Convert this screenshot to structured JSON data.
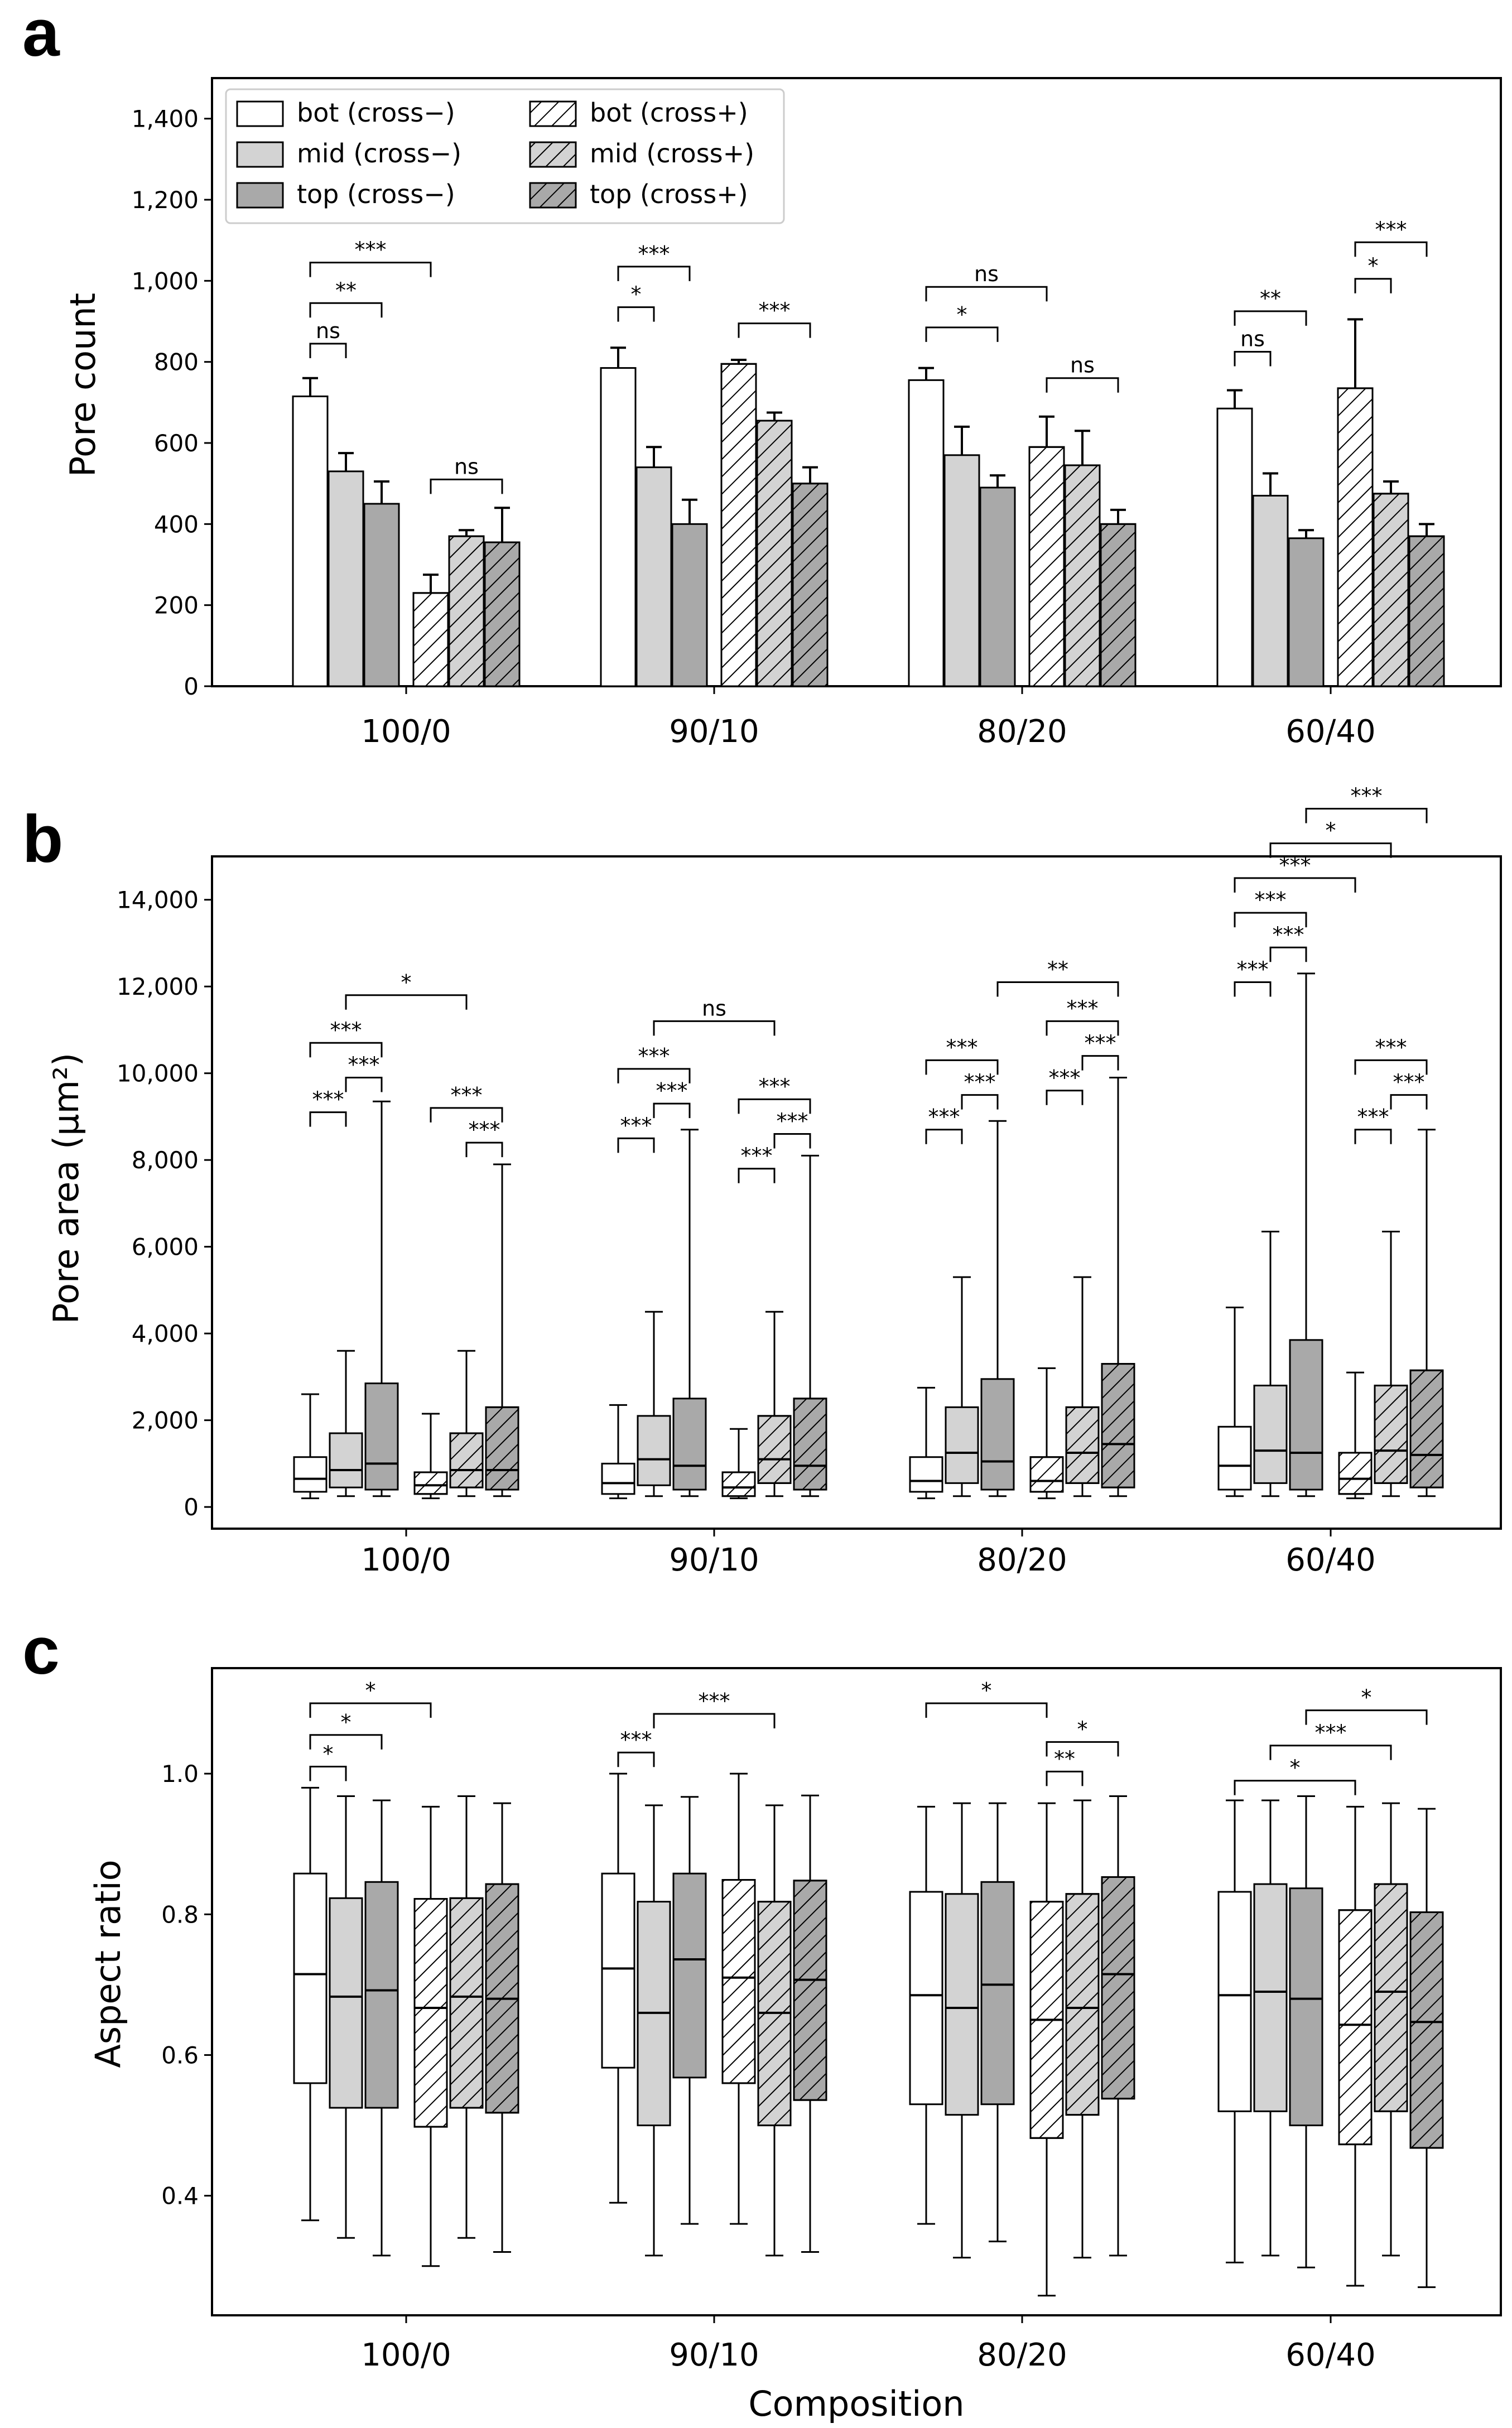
{
  "categories": [
    "100/0",
    "90/10",
    "80/20",
    "60/40"
  ],
  "legend": [
    {
      "label": "bot (cross−)",
      "fill": "#ffffff",
      "hatch": false
    },
    {
      "label": "mid (cross−)",
      "fill": "#d3d3d3",
      "hatch": false
    },
    {
      "label": "top (cross−)",
      "fill": "#a9a9a9",
      "hatch": false
    },
    {
      "label": "bot (cross+)",
      "fill": "#ffffff",
      "hatch": true
    },
    {
      "label": "mid (cross+)",
      "fill": "#d3d3d3",
      "hatch": true
    },
    {
      "label": "top (cross+)",
      "fill": "#a9a9a9",
      "hatch": true
    }
  ],
  "xlabel": "Composition",
  "chart_data": [
    {
      "panel": "a",
      "type": "bar",
      "ylabel": "Pore count",
      "ylim": [
        0,
        1500
      ],
      "yticks": [
        0,
        200,
        400,
        600,
        800,
        1000,
        1200,
        1400
      ],
      "ytick_labels": [
        "0",
        "200",
        "400",
        "600",
        "800",
        "1,000",
        "1,200",
        "1,400"
      ],
      "categories": [
        "100/0",
        "90/10",
        "80/20",
        "60/40"
      ],
      "series": [
        {
          "name": "bot (cross−)",
          "values": [
            715,
            785,
            755,
            685
          ],
          "errors": [
            45,
            50,
            30,
            45
          ]
        },
        {
          "name": "mid (cross−)",
          "values": [
            530,
            540,
            570,
            470
          ],
          "errors": [
            45,
            50,
            70,
            55
          ]
        },
        {
          "name": "top (cross−)",
          "values": [
            450,
            400,
            490,
            365
          ],
          "errors": [
            55,
            60,
            30,
            20
          ]
        },
        {
          "name": "bot (cross+)",
          "values": [
            230,
            795,
            590,
            735
          ],
          "errors": [
            45,
            10,
            75,
            170
          ]
        },
        {
          "name": "mid (cross+)",
          "values": [
            370,
            655,
            545,
            475
          ],
          "errors": [
            15,
            20,
            85,
            30
          ]
        },
        {
          "name": "top (cross+)",
          "values": [
            355,
            500,
            400,
            370
          ],
          "errors": [
            85,
            40,
            35,
            30
          ]
        }
      ],
      "significance": [
        {
          "group": 0,
          "from": 0,
          "to": 1,
          "label": "ns",
          "y": 845
        },
        {
          "group": 0,
          "from": 0,
          "to": 2,
          "label": "**",
          "y": 945
        },
        {
          "group": 0,
          "from": 0,
          "to": 3,
          "label": "***",
          "y": 1045
        },
        {
          "group": 0,
          "from": 3,
          "to": 5,
          "label": "ns",
          "y": 510
        },
        {
          "group": 1,
          "from": 0,
          "to": 1,
          "label": "*",
          "y": 935
        },
        {
          "group": 1,
          "from": 0,
          "to": 2,
          "label": "***",
          "y": 1035
        },
        {
          "group": 1,
          "from": 3,
          "to": 5,
          "label": "***",
          "y": 895
        },
        {
          "group": 2,
          "from": 0,
          "to": 2,
          "label": "*",
          "y": 885
        },
        {
          "group": 2,
          "from": 0,
          "to": 3,
          "label": "ns",
          "y": 985
        },
        {
          "group": 2,
          "from": 3,
          "to": 5,
          "label": "ns",
          "y": 760
        },
        {
          "group": 3,
          "from": 0,
          "to": 1,
          "label": "ns",
          "y": 825
        },
        {
          "group": 3,
          "from": 0,
          "to": 2,
          "label": "**",
          "y": 925
        },
        {
          "group": 3,
          "from": 3,
          "to": 4,
          "label": "*",
          "y": 1005
        },
        {
          "group": 3,
          "from": 3,
          "to": 5,
          "label": "***",
          "y": 1095
        }
      ]
    },
    {
      "panel": "b",
      "type": "box",
      "ylabel": "Pore area (μm²)",
      "ylim": [
        -500,
        15000
      ],
      "yticks": [
        0,
        2000,
        4000,
        6000,
        8000,
        10000,
        12000,
        14000
      ],
      "ytick_labels": [
        "0",
        "2,000",
        "4,000",
        "6,000",
        "8,000",
        "10,000",
        "12,000",
        "14,000"
      ],
      "categories": [
        "100/0",
        "90/10",
        "80/20",
        "60/40"
      ],
      "groups": [
        [
          {
            "min": 200,
            "q1": 350,
            "median": 650,
            "q3": 1150,
            "max": 2600
          },
          {
            "min": 250,
            "q1": 450,
            "median": 850,
            "q3": 1700,
            "max": 3600
          },
          {
            "min": 250,
            "q1": 400,
            "median": 1000,
            "q3": 2850,
            "max": 9350
          },
          {
            "min": 200,
            "q1": 300,
            "median": 500,
            "q3": 800,
            "max": 2150
          },
          {
            "min": 250,
            "q1": 450,
            "median": 850,
            "q3": 1700,
            "max": 3600
          },
          {
            "min": 250,
            "q1": 400,
            "median": 850,
            "q3": 2300,
            "max": 7900
          }
        ],
        [
          {
            "min": 200,
            "q1": 300,
            "median": 550,
            "q3": 1000,
            "max": 2350
          },
          {
            "min": 250,
            "q1": 500,
            "median": 1100,
            "q3": 2100,
            "max": 4500
          },
          {
            "min": 250,
            "q1": 400,
            "median": 950,
            "q3": 2500,
            "max": 8700
          },
          {
            "min": 200,
            "q1": 250,
            "median": 450,
            "q3": 800,
            "max": 1800
          },
          {
            "min": 250,
            "q1": 550,
            "median": 1100,
            "q3": 2100,
            "max": 4500
          },
          {
            "min": 250,
            "q1": 400,
            "median": 950,
            "q3": 2500,
            "max": 8100
          }
        ],
        [
          {
            "min": 200,
            "q1": 350,
            "median": 600,
            "q3": 1150,
            "max": 2750
          },
          {
            "min": 250,
            "q1": 550,
            "median": 1250,
            "q3": 2300,
            "max": 5300
          },
          {
            "min": 250,
            "q1": 400,
            "median": 1050,
            "q3": 2950,
            "max": 8900
          },
          {
            "min": 200,
            "q1": 350,
            "median": 600,
            "q3": 1150,
            "max": 3200
          },
          {
            "min": 250,
            "q1": 550,
            "median": 1250,
            "q3": 2300,
            "max": 5300
          },
          {
            "min": 250,
            "q1": 450,
            "median": 1450,
            "q3": 3300,
            "max": 9900
          }
        ],
        [
          {
            "min": 250,
            "q1": 400,
            "median": 950,
            "q3": 1850,
            "max": 4600
          },
          {
            "min": 250,
            "q1": 550,
            "median": 1300,
            "q3": 2800,
            "max": 6350
          },
          {
            "min": 250,
            "q1": 400,
            "median": 1250,
            "q3": 3850,
            "max": 12300
          },
          {
            "min": 200,
            "q1": 300,
            "median": 650,
            "q3": 1250,
            "max": 3100
          },
          {
            "min": 250,
            "q1": 550,
            "median": 1300,
            "q3": 2800,
            "max": 6350
          },
          {
            "min": 250,
            "q1": 450,
            "median": 1200,
            "q3": 3150,
            "max": 8700
          }
        ]
      ],
      "significance": [
        {
          "group": 0,
          "from": 0,
          "to": 1,
          "label": "***",
          "y": 9100
        },
        {
          "group": 0,
          "from": 1,
          "to": 2,
          "label": "***",
          "y": 9900
        },
        {
          "group": 0,
          "from": 0,
          "to": 2,
          "label": "***",
          "y": 10700
        },
        {
          "group": 0,
          "from": 4,
          "to": 5,
          "label": "***",
          "y": 8400
        },
        {
          "group": 0,
          "from": 3,
          "to": 5,
          "label": "***",
          "y": 9200
        },
        {
          "group": 0,
          "from": 1,
          "to": 4,
          "label": "*",
          "y": 11800
        },
        {
          "group": 1,
          "from": 0,
          "to": 1,
          "label": "***",
          "y": 8500
        },
        {
          "group": 1,
          "from": 1,
          "to": 2,
          "label": "***",
          "y": 9300
        },
        {
          "group": 1,
          "from": 0,
          "to": 2,
          "label": "***",
          "y": 10100
        },
        {
          "group": 1,
          "from": 3,
          "to": 4,
          "label": "***",
          "y": 7800
        },
        {
          "group": 1,
          "from": 4,
          "to": 5,
          "label": "***",
          "y": 8600
        },
        {
          "group": 1,
          "from": 3,
          "to": 5,
          "label": "***",
          "y": 9400
        },
        {
          "group": 1,
          "from": 1,
          "to": 4,
          "label": "ns",
          "y": 11200
        },
        {
          "group": 2,
          "from": 0,
          "to": 1,
          "label": "***",
          "y": 8700
        },
        {
          "group": 2,
          "from": 1,
          "to": 2,
          "label": "***",
          "y": 9500
        },
        {
          "group": 2,
          "from": 0,
          "to": 2,
          "label": "***",
          "y": 10300
        },
        {
          "group": 2,
          "from": 3,
          "to": 4,
          "label": "***",
          "y": 9600
        },
        {
          "group": 2,
          "from": 4,
          "to": 5,
          "label": "***",
          "y": 10400
        },
        {
          "group": 2,
          "from": 3,
          "to": 5,
          "label": "***",
          "y": 11200
        },
        {
          "group": 2,
          "from": 2,
          "to": 5,
          "label": "**",
          "y": 12100
        },
        {
          "group": 3,
          "from": 0,
          "to": 1,
          "label": "***",
          "y": 12100
        },
        {
          "group": 3,
          "from": 1,
          "to": 2,
          "label": "***",
          "y": 12900
        },
        {
          "group": 3,
          "from": 0,
          "to": 2,
          "label": "***",
          "y": 13700
        },
        {
          "group": 3,
          "from": 0,
          "to": 3,
          "label": "***",
          "y": 14500
        },
        {
          "group": 3,
          "from": 1,
          "to": 4,
          "label": "*",
          "y": 15300
        },
        {
          "group": 3,
          "from": 2,
          "to": 5,
          "label": "***",
          "y": 16100
        },
        {
          "group": 3,
          "from": 3,
          "to": 4,
          "label": "***",
          "y": 8700
        },
        {
          "group": 3,
          "from": 4,
          "to": 5,
          "label": "***",
          "y": 9500
        },
        {
          "group": 3,
          "from": 3,
          "to": 5,
          "label": "***",
          "y": 10300
        }
      ]
    },
    {
      "panel": "c",
      "type": "box",
      "ylabel": "Aspect ratio",
      "ylim": [
        0.23,
        1.15
      ],
      "yticks": [
        0.4,
        0.6,
        0.8,
        1.0
      ],
      "ytick_labels": [
        "0.4",
        "0.6",
        "0.8",
        "1.0"
      ],
      "categories": [
        "100/0",
        "90/10",
        "80/20",
        "60/40"
      ],
      "groups": [
        [
          {
            "min": 0.365,
            "q1": 0.56,
            "median": 0.715,
            "q3": 0.858,
            "max": 0.98
          },
          {
            "min": 0.34,
            "q1": 0.525,
            "median": 0.683,
            "q3": 0.823,
            "max": 0.968
          },
          {
            "min": 0.315,
            "q1": 0.525,
            "median": 0.692,
            "q3": 0.846,
            "max": 0.962
          },
          {
            "min": 0.3,
            "q1": 0.498,
            "median": 0.667,
            "q3": 0.822,
            "max": 0.953
          },
          {
            "min": 0.34,
            "q1": 0.525,
            "median": 0.683,
            "q3": 0.823,
            "max": 0.968
          },
          {
            "min": 0.32,
            "q1": 0.518,
            "median": 0.68,
            "q3": 0.843,
            "max": 0.958
          }
        ],
        [
          {
            "min": 0.39,
            "q1": 0.582,
            "median": 0.723,
            "q3": 0.858,
            "max": 1.0
          },
          {
            "min": 0.315,
            "q1": 0.5,
            "median": 0.66,
            "q3": 0.818,
            "max": 0.955
          },
          {
            "min": 0.36,
            "q1": 0.568,
            "median": 0.736,
            "q3": 0.858,
            "max": 0.967
          },
          {
            "min": 0.36,
            "q1": 0.56,
            "median": 0.71,
            "q3": 0.849,
            "max": 1.0
          },
          {
            "min": 0.315,
            "q1": 0.5,
            "median": 0.66,
            "q3": 0.818,
            "max": 0.955
          },
          {
            "min": 0.32,
            "q1": 0.536,
            "median": 0.707,
            "q3": 0.848,
            "max": 0.969
          }
        ],
        [
          {
            "min": 0.36,
            "q1": 0.53,
            "median": 0.685,
            "q3": 0.832,
            "max": 0.953
          },
          {
            "min": 0.312,
            "q1": 0.515,
            "median": 0.667,
            "q3": 0.829,
            "max": 0.958
          },
          {
            "min": 0.335,
            "q1": 0.53,
            "median": 0.7,
            "q3": 0.846,
            "max": 0.958
          },
          {
            "min": 0.258,
            "q1": 0.482,
            "median": 0.65,
            "q3": 0.818,
            "max": 0.958
          },
          {
            "min": 0.312,
            "q1": 0.515,
            "median": 0.667,
            "q3": 0.829,
            "max": 0.962
          },
          {
            "min": 0.315,
            "q1": 0.538,
            "median": 0.715,
            "q3": 0.853,
            "max": 0.968
          }
        ],
        [
          {
            "min": 0.305,
            "q1": 0.52,
            "median": 0.685,
            "q3": 0.832,
            "max": 0.962
          },
          {
            "min": 0.315,
            "q1": 0.52,
            "median": 0.69,
            "q3": 0.843,
            "max": 0.962
          },
          {
            "min": 0.298,
            "q1": 0.5,
            "median": 0.68,
            "q3": 0.837,
            "max": 0.968
          },
          {
            "min": 0.272,
            "q1": 0.473,
            "median": 0.643,
            "q3": 0.806,
            "max": 0.953
          },
          {
            "min": 0.315,
            "q1": 0.52,
            "median": 0.69,
            "q3": 0.843,
            "max": 0.958
          },
          {
            "min": 0.27,
            "q1": 0.468,
            "median": 0.647,
            "q3": 0.803,
            "max": 0.95
          }
        ]
      ],
      "significance": [
        {
          "group": 0,
          "from": 0,
          "to": 1,
          "label": "*",
          "y": 1.01
        },
        {
          "group": 0,
          "from": 0,
          "to": 2,
          "label": "*",
          "y": 1.055
        },
        {
          "group": 0,
          "from": 0,
          "to": 3,
          "label": "*",
          "y": 1.1
        },
        {
          "group": 1,
          "from": 0,
          "to": 1,
          "label": "***",
          "y": 1.03
        },
        {
          "group": 1,
          "from": 1,
          "to": 4,
          "label": "***",
          "y": 1.085
        },
        {
          "group": 2,
          "from": 0,
          "to": 3,
          "label": "*",
          "y": 1.1
        },
        {
          "group": 2,
          "from": 3,
          "to": 4,
          "label": "**",
          "y": 1.003
        },
        {
          "group": 2,
          "from": 3,
          "to": 5,
          "label": "*",
          "y": 1.045
        },
        {
          "group": 3,
          "from": 0,
          "to": 3,
          "label": "*",
          "y": 0.99
        },
        {
          "group": 3,
          "from": 1,
          "to": 4,
          "label": "***",
          "y": 1.04
        },
        {
          "group": 3,
          "from": 2,
          "to": 5,
          "label": "*",
          "y": 1.09
        }
      ]
    }
  ]
}
